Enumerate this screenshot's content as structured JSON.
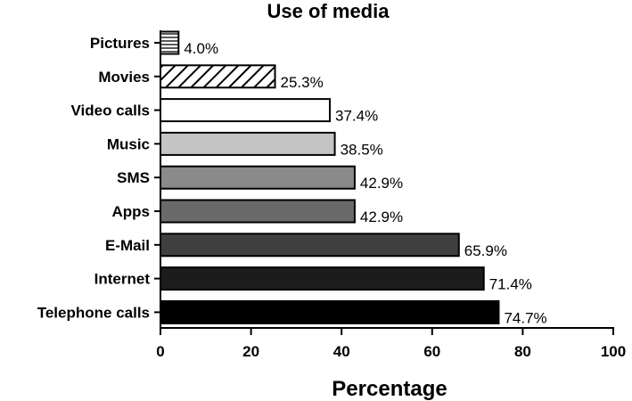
{
  "chart_data": {
    "type": "bar",
    "orientation": "horizontal",
    "title": "Use of media",
    "xlabel": "Percentage",
    "ylabel": "",
    "xlim": [
      0,
      100
    ],
    "xticks": [
      0,
      20,
      40,
      60,
      80,
      100
    ],
    "grid": false,
    "legend": "none",
    "categories": [
      "Pictures",
      "Movies",
      "Video calls",
      "Music",
      "SMS",
      "Apps",
      "E-Mail",
      "Internet",
      "Telephone calls"
    ],
    "values": [
      4.0,
      25.3,
      37.4,
      38.5,
      42.9,
      42.9,
      65.9,
      71.4,
      74.7
    ],
    "data_labels": [
      "4.0%",
      "25.3%",
      "37.4%",
      "38.5%",
      "42.9%",
      "42.9%",
      "65.9%",
      "71.4%",
      "74.7%"
    ],
    "fills": [
      "horizontal-lines",
      "diagonal-hatch",
      "#ffffff",
      "#c4c4c4",
      "#8a8a8a",
      "#6a6a6a",
      "#3f3f3f",
      "#1c1c1c",
      "#000000"
    ]
  }
}
